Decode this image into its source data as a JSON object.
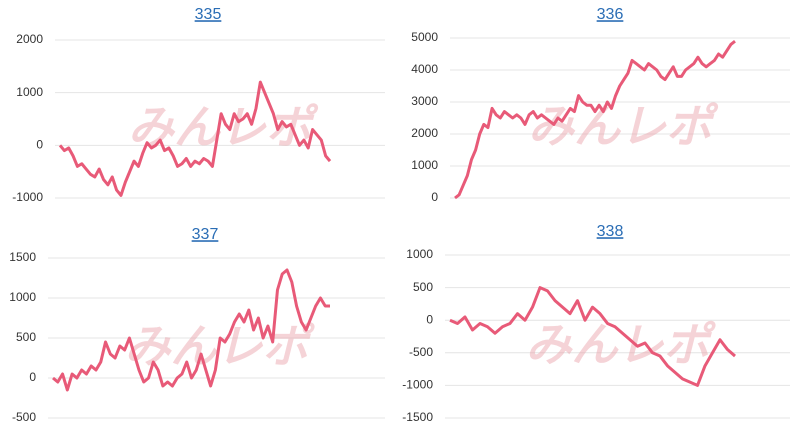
{
  "watermark": "みんレポ",
  "chart_data": [
    {
      "type": "line",
      "title": "335",
      "color": "#e85a78",
      "grid": true,
      "ylim": [
        -1000,
        2000
      ],
      "yticks": [
        -1000,
        0,
        1000,
        2000
      ],
      "values": [
        0,
        -100,
        -50,
        -200,
        -400,
        -350,
        -450,
        -550,
        -600,
        -450,
        -650,
        -750,
        -600,
        -850,
        -950,
        -700,
        -500,
        -300,
        -400,
        -150,
        50,
        -50,
        0,
        100,
        -100,
        -50,
        -200,
        -400,
        -350,
        -250,
        -400,
        -300,
        -350,
        -250,
        -300,
        -400,
        100,
        600,
        400,
        300,
        600,
        450,
        500,
        600,
        400,
        700,
        1200,
        1000,
        800,
        600,
        300,
        450,
        350,
        400,
        200,
        0,
        100,
        -50,
        300,
        200,
        100,
        -200,
        -300
      ]
    },
    {
      "type": "line",
      "title": "336",
      "color": "#e85a78",
      "grid": true,
      "ylim": [
        0,
        5000
      ],
      "yticks": [
        0,
        1000,
        2000,
        3000,
        4000,
        5000
      ],
      "values": [
        0,
        100,
        400,
        700,
        1200,
        1500,
        2000,
        2300,
        2200,
        2800,
        2600,
        2500,
        2700,
        2600,
        2500,
        2600,
        2500,
        2300,
        2600,
        2700,
        2500,
        2600,
        2500,
        2400,
        2300,
        2500,
        2400,
        2600,
        2800,
        2700,
        3200,
        3000,
        2900,
        2900,
        2700,
        2900,
        2700,
        3000,
        2800,
        3200,
        3500,
        3700,
        3900,
        4300,
        4200,
        4100,
        4000,
        4200,
        4100,
        4000,
        3800,
        3700,
        3900,
        4100,
        3800,
        3800,
        4000,
        4100,
        4200,
        4400,
        4200,
        4100,
        4200,
        4300,
        4500,
        4400,
        4600,
        4800,
        4900
      ]
    },
    {
      "type": "line",
      "title": "337",
      "color": "#e85a78",
      "grid": true,
      "ylim": [
        -500,
        1500
      ],
      "yticks": [
        -500,
        0,
        500,
        1000,
        1500
      ],
      "values": [
        0,
        -50,
        50,
        -150,
        50,
        0,
        100,
        50,
        150,
        100,
        200,
        450,
        300,
        250,
        400,
        350,
        500,
        300,
        100,
        -50,
        0,
        200,
        100,
        -100,
        -50,
        -100,
        0,
        50,
        200,
        0,
        100,
        300,
        100,
        -100,
        100,
        500,
        450,
        550,
        700,
        800,
        700,
        850,
        600,
        750,
        500,
        650,
        450,
        1100,
        1300,
        1350,
        1200,
        900,
        700,
        600,
        750,
        900,
        1000,
        900,
        900
      ]
    },
    {
      "type": "line",
      "title": "338",
      "color": "#e85a78",
      "grid": true,
      "ylim": [
        -1500,
        1000
      ],
      "yticks": [
        -1500,
        -1000,
        -500,
        0,
        500,
        1000
      ],
      "values": [
        0,
        -50,
        50,
        -150,
        -50,
        -100,
        -200,
        -100,
        -50,
        100,
        0,
        200,
        500,
        450,
        300,
        200,
        100,
        300,
        0,
        200,
        100,
        -50,
        -100,
        -200,
        -300,
        -400,
        -350,
        -500,
        -550,
        -700,
        -800,
        -900,
        -950,
        -1000,
        -700,
        -500,
        -300,
        -450,
        -550
      ]
    }
  ]
}
